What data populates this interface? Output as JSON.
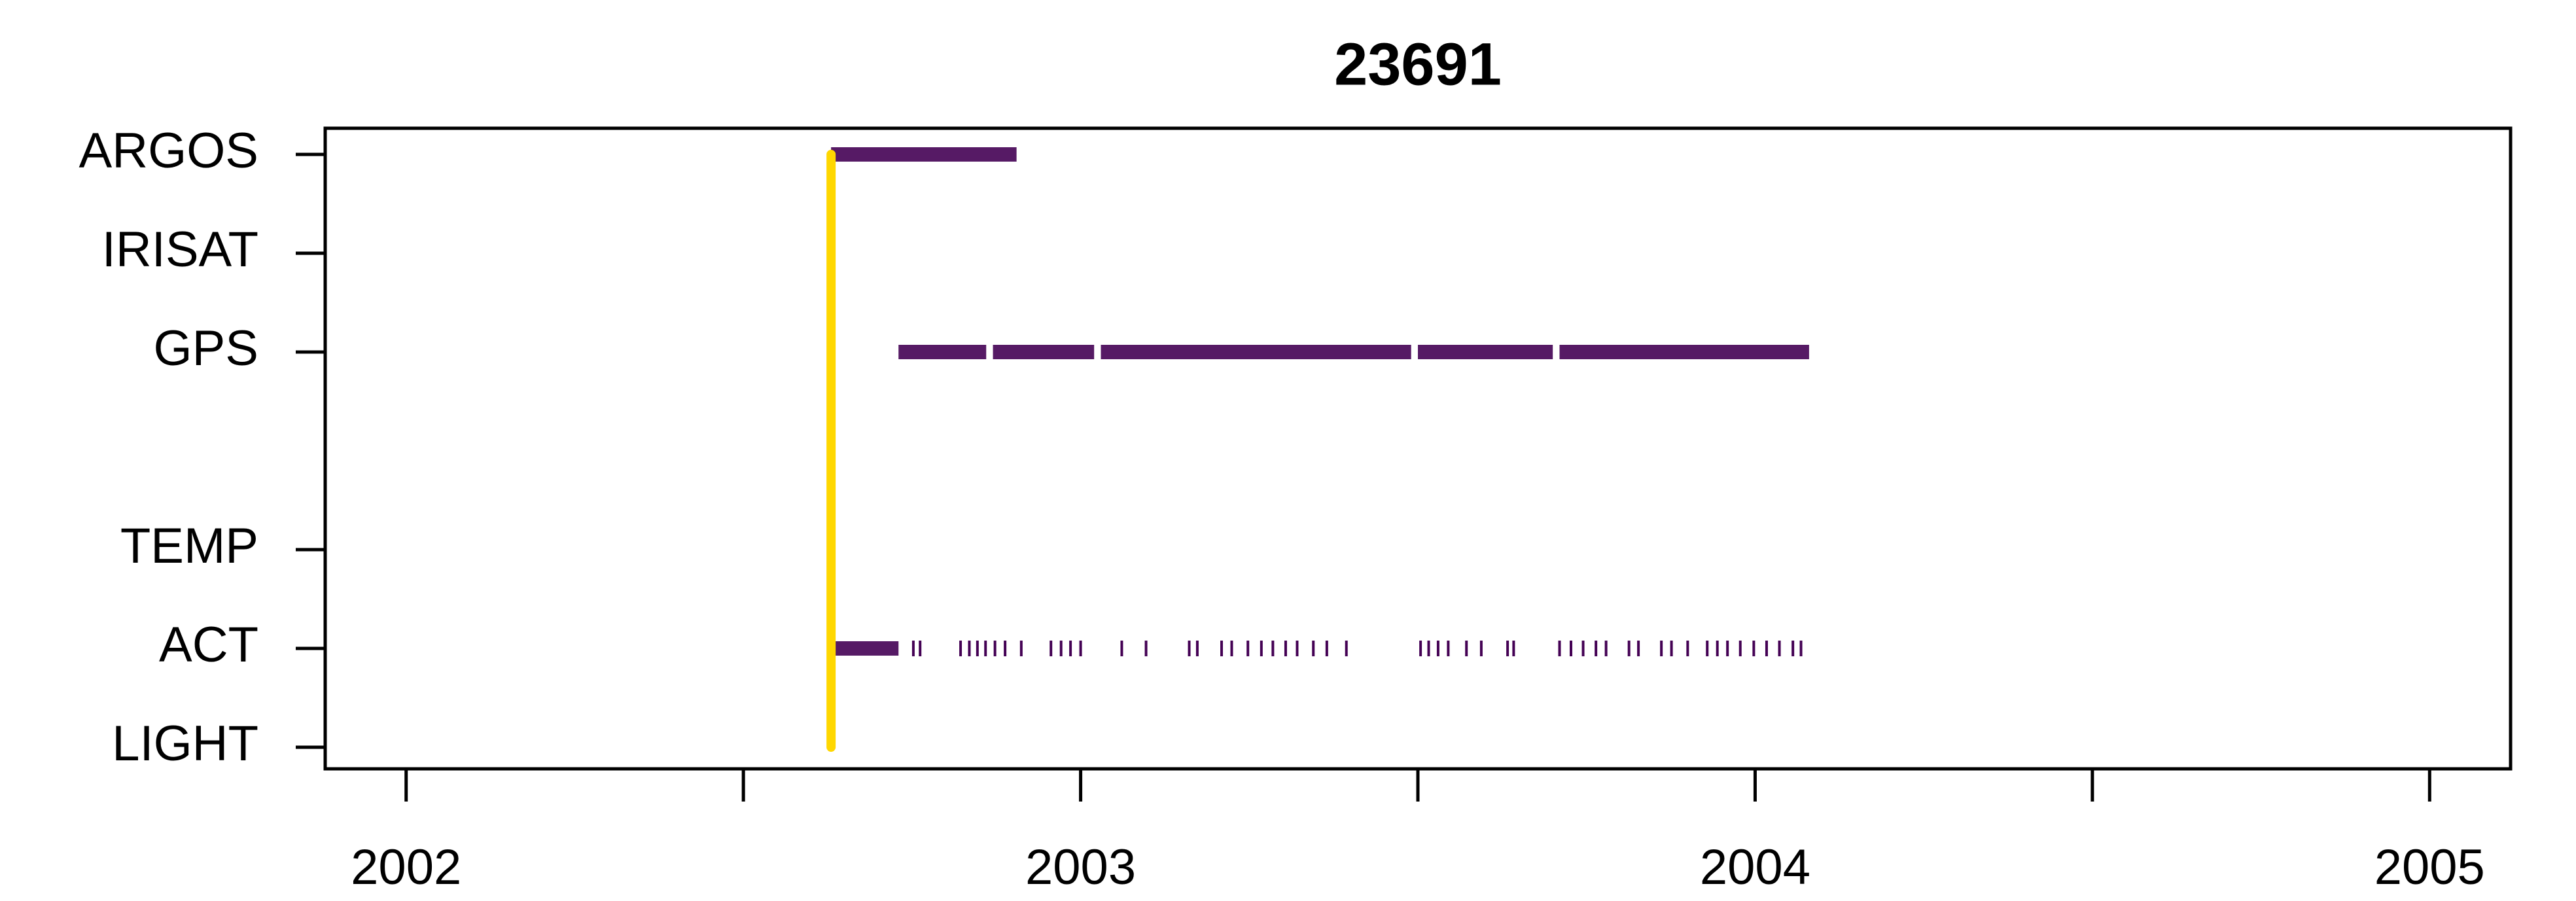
{
  "chart_data": {
    "type": "event-strip",
    "title": "23691",
    "xlim": [
      2001.88,
      2005.12
    ],
    "xticks": [
      2002,
      {
        "value": 2002.5,
        "label": null
      },
      2003,
      {
        "value": 2003.5,
        "label": null
      },
      2004,
      {
        "value": 2004.5,
        "label": null
      },
      2005
    ],
    "series": [
      {
        "name": "ARGOS",
        "color": "#440154",
        "spans": [
          [
            2002.63,
            2002.905
          ]
        ],
        "events": []
      },
      {
        "name": "IRISAT",
        "color": "#440154",
        "spans": [],
        "events": []
      },
      {
        "name": "GPS",
        "color": "#440154",
        "spans": [
          [
            2002.73,
            2002.86
          ],
          [
            2002.87,
            2003.02
          ],
          [
            2003.03,
            2003.49
          ],
          [
            2003.5,
            2003.7
          ],
          [
            2003.71,
            2004.08
          ]
        ],
        "events": []
      },
      {
        "name": null,
        "color": "#440154",
        "spans": [],
        "events": []
      },
      {
        "name": "TEMP",
        "color": "#440154",
        "spans": [],
        "events": []
      },
      {
        "name": "ACT",
        "color": "#440154",
        "spans": [
          [
            2002.63,
            2002.73
          ]
        ],
        "events": [
          2002.752,
          2002.762,
          2002.822,
          2002.835,
          2002.847,
          2002.859,
          2002.873,
          2002.888,
          2002.912,
          2002.956,
          2002.971,
          2002.985,
          2003.0,
          2003.061,
          2003.097,
          2003.161,
          2003.173,
          2003.209,
          2003.224,
          2003.248,
          2003.268,
          2003.285,
          2003.304,
          2003.321,
          2003.345,
          2003.365,
          2003.394,
          2003.504,
          2003.516,
          2003.53,
          2003.545,
          2003.572,
          2003.594,
          2003.633,
          2003.642,
          2003.71,
          2003.727,
          2003.745,
          2003.764,
          2003.779,
          2003.813,
          2003.827,
          2003.861,
          2003.876,
          2003.9,
          2003.929,
          2003.944,
          2003.959,
          2003.978,
          2003.998,
          2004.017,
          2004.036,
          2004.056,
          2004.068
        ]
      },
      {
        "name": "LIGHT",
        "color": "#440154",
        "spans": [],
        "events": []
      }
    ],
    "deployment": {
      "x": 2002.63,
      "color": "#FFD700"
    }
  }
}
